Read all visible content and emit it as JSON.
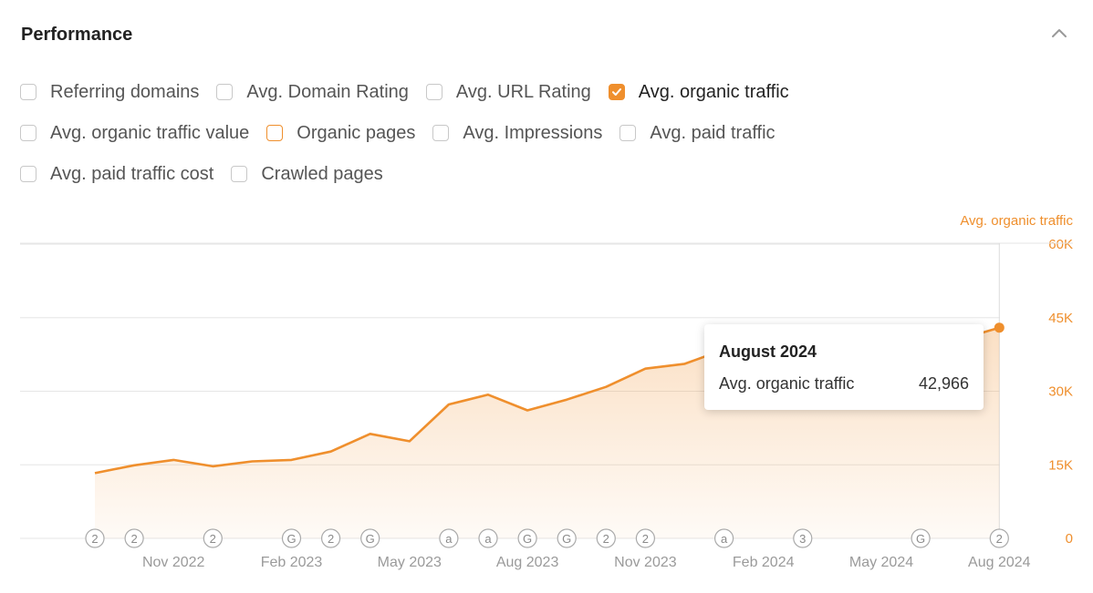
{
  "header": {
    "title": "Performance"
  },
  "filters": [
    [
      {
        "label": "Referring domains",
        "state": "unchecked"
      },
      {
        "label": "Avg. Domain Rating",
        "state": "unchecked"
      },
      {
        "label": "Avg. URL Rating",
        "state": "unchecked"
      },
      {
        "label": "Avg. organic traffic",
        "state": "checked"
      }
    ],
    [
      {
        "label": "Avg. organic traffic value",
        "state": "unchecked"
      },
      {
        "label": "Organic pages",
        "state": "highlighted"
      },
      {
        "label": "Avg. Impressions",
        "state": "unchecked"
      },
      {
        "label": "Avg. paid traffic",
        "state": "unchecked"
      }
    ],
    [
      {
        "label": "Avg. paid traffic cost",
        "state": "unchecked"
      },
      {
        "label": "Crawled pages",
        "state": "unchecked"
      }
    ]
  ],
  "colors": {
    "accent": "#ef8f2d",
    "grid": "#e6e6e6",
    "axis_text": "#9a9a9a"
  },
  "chart_data": {
    "type": "area",
    "series": [
      {
        "name": "Avg. organic traffic",
        "x": [
          "2022-09",
          "2022-10",
          "2022-11",
          "2022-12",
          "2023-01",
          "2023-02",
          "2023-03",
          "2023-04",
          "2023-05",
          "2023-06",
          "2023-07",
          "2023-08",
          "2023-09",
          "2023-10",
          "2023-11",
          "2023-12",
          "2024-01",
          "2024-02",
          "2024-03",
          "2024-04",
          "2024-05",
          "2024-06",
          "2024-07",
          "2024-08"
        ],
        "values": [
          13300,
          14900,
          16000,
          14700,
          15700,
          16000,
          17700,
          21300,
          19800,
          27300,
          29300,
          26100,
          28300,
          30900,
          34600,
          35600,
          38500,
          40000,
          40800,
          41500,
          41900,
          42200,
          40600,
          42966
        ]
      }
    ],
    "right_axis_label": "Avg. organic traffic",
    "y_ticks": [
      "0",
      "15K",
      "30K",
      "45K",
      "60K"
    ],
    "ylim": [
      0,
      60000
    ],
    "x_ticks": [
      "Nov 2022",
      "Feb 2023",
      "May 2023",
      "Aug 2023",
      "Nov 2023",
      "Feb 2024",
      "May 2024",
      "Aug 2024"
    ],
    "markers": [
      {
        "month": "2022-09",
        "label": "2"
      },
      {
        "month": "2022-10",
        "label": "2"
      },
      {
        "month": "2022-12",
        "label": "2"
      },
      {
        "month": "2023-02",
        "label": "G"
      },
      {
        "month": "2023-03",
        "label": "2"
      },
      {
        "month": "2023-04",
        "label": "G"
      },
      {
        "month": "2023-06",
        "label": "a"
      },
      {
        "month": "2023-07",
        "label": "a"
      },
      {
        "month": "2023-08",
        "label": "G"
      },
      {
        "month": "2023-09",
        "label": "G"
      },
      {
        "month": "2023-10",
        "label": "2"
      },
      {
        "month": "2023-11",
        "label": "2"
      },
      {
        "month": "2024-01",
        "label": "a"
      },
      {
        "month": "2024-03",
        "label": "3"
      },
      {
        "month": "2024-06",
        "label": "G"
      },
      {
        "month": "2024-08",
        "label": "2"
      }
    ],
    "grid": true
  },
  "tooltip": {
    "title": "August 2024",
    "metric": "Avg. organic traffic",
    "value": "42,966"
  }
}
